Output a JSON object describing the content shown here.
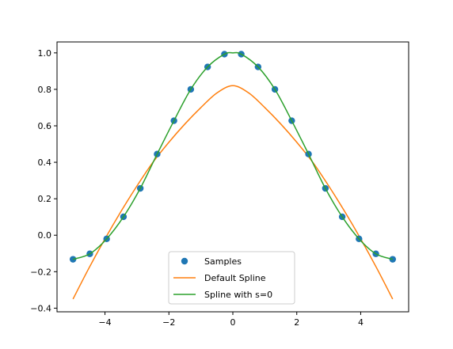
{
  "chart_data": {
    "type": "line",
    "title": "",
    "xlabel": "",
    "ylabel": "",
    "xlim": [
      -5.5,
      5.5
    ],
    "ylim": [
      -0.42,
      1.06
    ],
    "x_ticks": [
      -4,
      -2,
      0,
      2,
      4
    ],
    "x_tick_labels": [
      "−4",
      "−2",
      "0",
      "2",
      "4"
    ],
    "y_ticks": [
      -0.4,
      -0.2,
      0.0,
      0.2,
      0.4,
      0.6,
      0.8,
      1.0
    ],
    "y_tick_labels": [
      "−0.4",
      "−0.2",
      "0.0",
      "0.2",
      "0.4",
      "0.6",
      "0.8",
      "1.0"
    ],
    "grid": false,
    "legend_position": "lower-center",
    "samples": {
      "name": "Samples",
      "color": "#1f77b4",
      "x": [
        -5.0,
        -4.474,
        -3.947,
        -3.421,
        -2.895,
        -2.368,
        -1.842,
        -1.316,
        -0.789,
        -0.263,
        0.263,
        0.789,
        1.316,
        1.842,
        2.368,
        2.895,
        3.421,
        3.947,
        4.474,
        5.0
      ],
      "y": [
        -0.132,
        -0.102,
        -0.02,
        0.101,
        0.257,
        0.445,
        0.628,
        0.8,
        0.923,
        0.993,
        0.993,
        0.923,
        0.8,
        0.628,
        0.445,
        0.257,
        0.101,
        -0.02,
        -0.102,
        -0.132
      ]
    },
    "series": [
      {
        "name": "Default Spline",
        "color": "#ff7f0e",
        "x": [
          -5.0,
          -4.5,
          -4.0,
          -3.5,
          -3.0,
          -2.5,
          -2.0,
          -1.5,
          -1.0,
          -0.5,
          0.0,
          0.5,
          1.0,
          1.5,
          2.0,
          2.5,
          3.0,
          3.5,
          4.0,
          4.5,
          5.0
        ],
        "y": [
          -0.35,
          -0.18,
          -0.02,
          0.13,
          0.27,
          0.4,
          0.51,
          0.61,
          0.7,
          0.78,
          0.82,
          0.78,
          0.7,
          0.61,
          0.51,
          0.4,
          0.27,
          0.13,
          -0.02,
          -0.18,
          -0.35
        ]
      },
      {
        "name": "Spline with s=0",
        "color": "#2ca02c",
        "x": [
          -5.0,
          -4.474,
          -3.947,
          -3.421,
          -2.895,
          -2.368,
          -1.842,
          -1.316,
          -0.789,
          -0.263,
          0.0,
          0.263,
          0.789,
          1.316,
          1.842,
          2.368,
          2.895,
          3.421,
          3.947,
          4.474,
          5.0
        ],
        "y": [
          -0.132,
          -0.102,
          -0.02,
          0.101,
          0.257,
          0.445,
          0.628,
          0.8,
          0.923,
          0.993,
          1.0,
          0.993,
          0.923,
          0.8,
          0.628,
          0.445,
          0.257,
          0.101,
          -0.02,
          -0.102,
          -0.132
        ]
      }
    ]
  }
}
